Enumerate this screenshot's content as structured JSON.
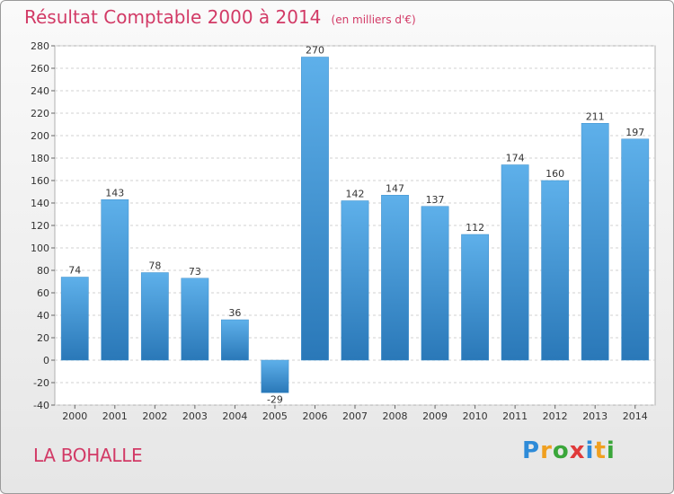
{
  "header": {
    "title": "Résultat Comptable 2000 à 2014",
    "subtitle": "(en milliers d'€)"
  },
  "footer": {
    "commune": "LA BOHALLE",
    "logo": {
      "letters": [
        "P",
        "r",
        "o",
        "x",
        "i",
        "t",
        "i"
      ],
      "colors": [
        "#2e8bd8",
        "#f0a020",
        "#3aa63a",
        "#e03a3a",
        "#2e8bd8",
        "#f0a020",
        "#3aa63a"
      ]
    }
  },
  "colors": {
    "bar_top": "#5eb0ea",
    "bar_bottom": "#2a78b8",
    "grid": "#d0d0d0",
    "title": "#d23a66"
  },
  "chart_data": {
    "type": "bar",
    "title": "Résultat Comptable 2000 à 2014",
    "subtitle": "(en milliers d'€)",
    "xlabel": "",
    "ylabel": "",
    "categories": [
      "2000",
      "2001",
      "2002",
      "2003",
      "2004",
      "2005",
      "2006",
      "2007",
      "2008",
      "2009",
      "2010",
      "2011",
      "2012",
      "2013",
      "2014"
    ],
    "values": [
      74,
      143,
      78,
      73,
      36,
      -29,
      270,
      142,
      147,
      137,
      112,
      174,
      160,
      211,
      197
    ],
    "ylim": [
      -40,
      280
    ],
    "yticks": [
      -40,
      -20,
      0,
      20,
      40,
      60,
      80,
      100,
      120,
      140,
      160,
      180,
      200,
      220,
      240,
      260,
      280
    ],
    "grid": true,
    "legend": "none"
  }
}
